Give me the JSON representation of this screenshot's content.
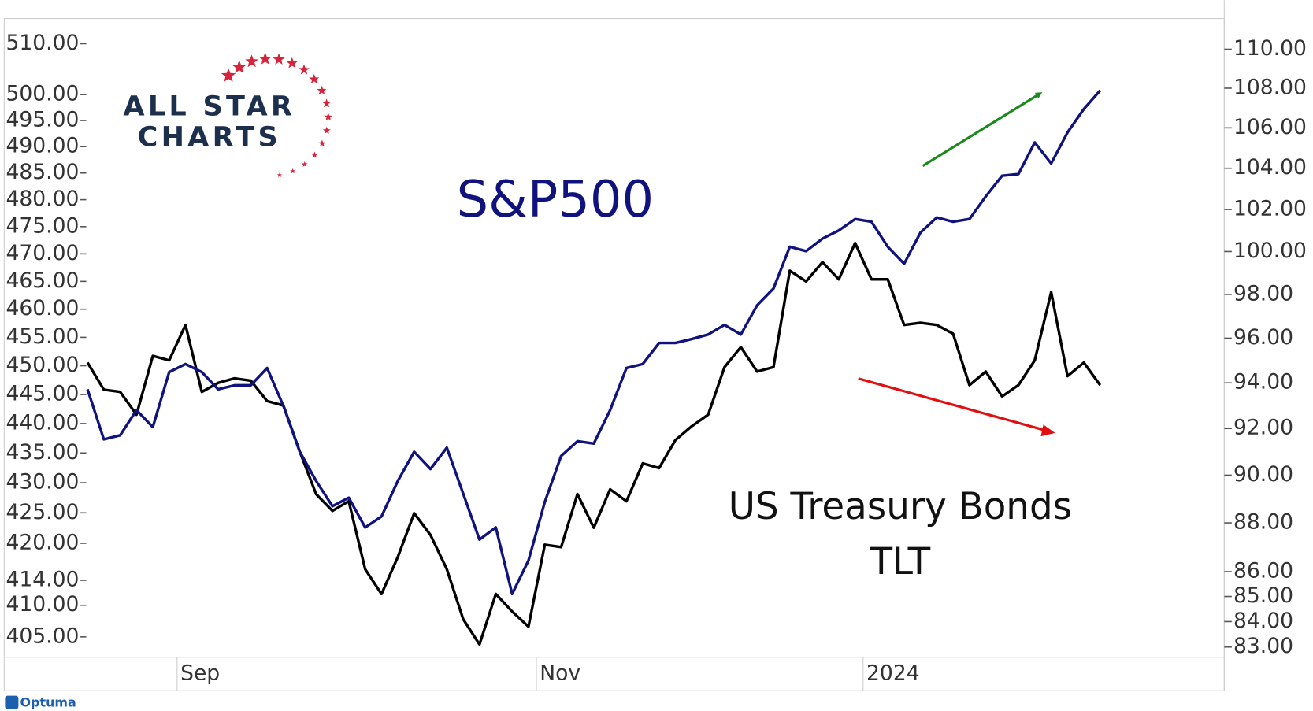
{
  "chart_data": {
    "type": "line",
    "categories": [
      null,
      null,
      null,
      null,
      null,
      null,
      "Sep",
      null,
      null,
      null,
      null,
      null,
      null,
      null,
      null,
      null,
      null,
      null,
      null,
      null,
      null,
      null,
      null,
      null,
      null,
      null,
      null,
      null,
      "Nov",
      null,
      null,
      null,
      null,
      null,
      null,
      null,
      null,
      null,
      null,
      null,
      null,
      null,
      null,
      null,
      null,
      null,
      null,
      null,
      "2024",
      null,
      null,
      null,
      null,
      null,
      null,
      null,
      null,
      null,
      null,
      null,
      null,
      null,
      null
    ],
    "series": [
      {
        "color": "#10137e",
        "values": [
          445.9,
          437.3,
          438.0,
          442.3,
          439.4,
          448.9,
          450.3,
          448.9,
          445.9,
          446.6,
          446.6,
          449.6,
          443.0,
          435.2,
          430.3,
          426.1,
          427.5,
          422.6,
          424.4,
          430.3,
          435.2,
          432.3,
          435.9,
          428.2,
          420.6,
          422.6,
          411.8,
          417.2,
          426.8,
          434.5,
          437.0,
          436.6,
          442.3,
          449.6,
          450.3,
          454.0,
          454.0,
          454.7,
          455.5,
          457.2,
          455.5,
          460.7,
          463.7,
          471.3,
          470.5,
          472.8,
          474.3,
          476.4,
          475.9,
          471.3,
          468.2,
          473.9,
          476.7,
          475.9,
          476.4,
          480.6,
          484.5,
          484.8,
          490.8,
          486.8,
          492.7,
          497.2,
          500.8
        ]
      },
      {
        "color": "#000000",
        "axis": "y2",
        "values": [
          94.9,
          93.7,
          93.6,
          92.6,
          95.2,
          95.0,
          96.6,
          93.6,
          94.0,
          94.2,
          94.1,
          93.2,
          93.0,
          91.0,
          89.2,
          88.5,
          88.9,
          86.1,
          85.1,
          86.6,
          88.4,
          87.5,
          86.1,
          84.1,
          83.1,
          85.1,
          84.4,
          83.8,
          87.1,
          87.0,
          89.2,
          87.8,
          89.4,
          88.9,
          90.5,
          90.3,
          91.5,
          92.1,
          92.6,
          94.7,
          95.6,
          94.5,
          94.7,
          99.1,
          98.6,
          99.5,
          98.7,
          100.4,
          98.7,
          98.7,
          96.6,
          96.7,
          96.6,
          96.2,
          93.9,
          94.5,
          93.4,
          93.9,
          95.0,
          98.1,
          94.3,
          94.9,
          93.9
        ]
      }
    ],
    "ylim": [
      401.8,
      515
    ],
    "y_scale": "log",
    "yticks": [
      {
        "value": 405,
        "label": "405.00"
      },
      {
        "value": 410,
        "label": "410.00"
      },
      {
        "value": 414,
        "label": "414.00"
      },
      {
        "value": 420,
        "label": "420.00"
      },
      {
        "value": 425,
        "label": "425.00"
      },
      {
        "value": 430,
        "label": "430.00"
      },
      {
        "value": 435,
        "label": "435.00"
      },
      {
        "value": 440,
        "label": "440.00"
      },
      {
        "value": 445,
        "label": "445.00"
      },
      {
        "value": 450,
        "label": "450.00"
      },
      {
        "value": 455,
        "label": "455.00"
      },
      {
        "value": 460,
        "label": "460.00"
      },
      {
        "value": 465,
        "label": "465.00"
      },
      {
        "value": 470,
        "label": "470.00"
      },
      {
        "value": 475,
        "label": "475.00"
      },
      {
        "value": 480,
        "label": "480.00"
      },
      {
        "value": 485,
        "label": "485.00"
      },
      {
        "value": 490,
        "label": "490.00"
      },
      {
        "value": 495,
        "label": "495.00"
      },
      {
        "value": 500,
        "label": "500.00"
      },
      {
        "value": 510,
        "label": "510.00"
      }
    ],
    "y2lim": [
      82.6,
      111.6
    ],
    "y2_scale": "log",
    "y2ticks": [
      {
        "value": 83,
        "label": "83.00"
      },
      {
        "value": 84,
        "label": "84.00"
      },
      {
        "value": 85,
        "label": "85.00"
      },
      {
        "value": 86,
        "label": "86.00"
      },
      {
        "value": 88,
        "label": "88.00"
      },
      {
        "value": 90,
        "label": "90.00"
      },
      {
        "value": 92,
        "label": "92.00"
      },
      {
        "value": 94,
        "label": "94.00"
      },
      {
        "value": 96,
        "label": "96.00"
      },
      {
        "value": 98,
        "label": "98.00"
      },
      {
        "value": 100,
        "label": "100.00"
      },
      {
        "value": 102,
        "label": "102.00"
      },
      {
        "value": 104,
        "label": "104.00"
      },
      {
        "value": 106,
        "label": "106.00"
      },
      {
        "value": 108,
        "label": "108.00"
      },
      {
        "value": 110,
        "label": "110.00"
      }
    ],
    "annotations": [
      "S&P500",
      "US Treasury Bonds",
      "TLT"
    ]
  },
  "logo": [
    "ALL STAR",
    "CHARTS"
  ],
  "footer": "Optuma"
}
